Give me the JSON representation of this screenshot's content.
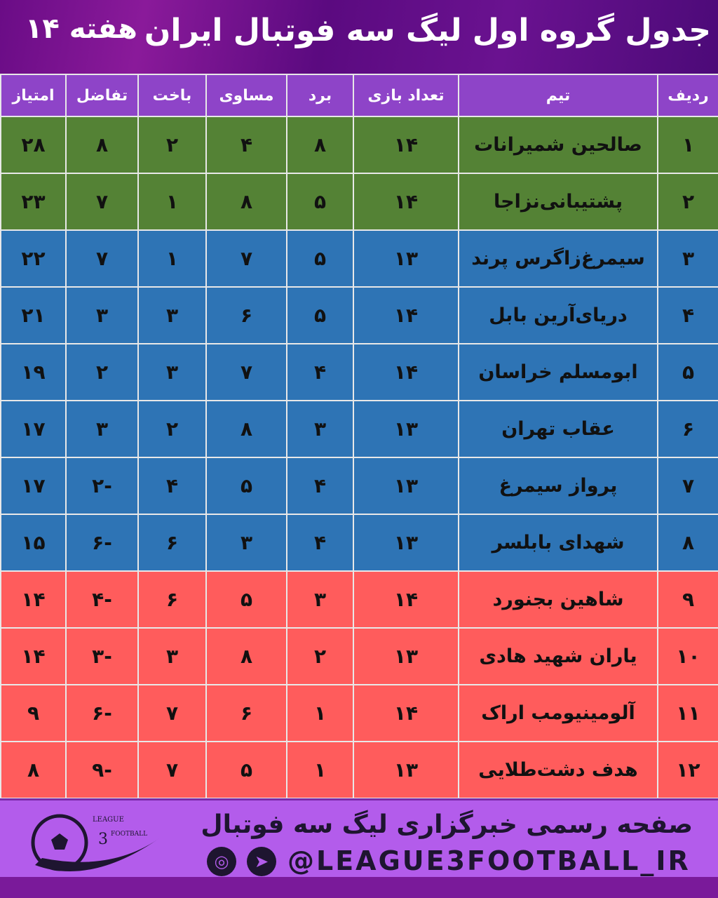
{
  "header": {
    "title": "جدول گروه اول لیگ سه فوتبال ایران",
    "week": "هفته ۱۴"
  },
  "columns": [
    "ردیف",
    "تیم",
    "تعداد بازی",
    "برد",
    "مساوی",
    "باخت",
    "تفاضل",
    "امتیاز"
  ],
  "zone_colors": {
    "green": "#548235",
    "blue": "#2e74b5",
    "red": "#ff5c5c"
  },
  "rows": [
    {
      "zone": "g",
      "cells": [
        "۱",
        "صالحین شمیرانات",
        "۱۴",
        "۸",
        "۴",
        "۲",
        "۸",
        "۲۸"
      ]
    },
    {
      "zone": "g",
      "cells": [
        "۲",
        "پشتیبانی‌نزاجا",
        "۱۴",
        "۵",
        "۸",
        "۱",
        "۷",
        "۲۳"
      ]
    },
    {
      "zone": "b",
      "cells": [
        "۳",
        "سیمرغ‌زاگرس پرند",
        "۱۳",
        "۵",
        "۷",
        "۱",
        "۷",
        "۲۲"
      ]
    },
    {
      "zone": "b",
      "cells": [
        "۴",
        "دریای‌آرین بابل",
        "۱۴",
        "۵",
        "۶",
        "۳",
        "۳",
        "۲۱"
      ]
    },
    {
      "zone": "b",
      "cells": [
        "۵",
        "ابومسلم خراسان",
        "۱۴",
        "۴",
        "۷",
        "۳",
        "۲",
        "۱۹"
      ]
    },
    {
      "zone": "b",
      "cells": [
        "۶",
        "عقاب تهران",
        "۱۳",
        "۳",
        "۸",
        "۲",
        "۳",
        "۱۷"
      ]
    },
    {
      "zone": "b",
      "cells": [
        "۷",
        "پرواز سیمرغ",
        "۱۳",
        "۴",
        "۵",
        "۴",
        "-۲",
        "۱۷"
      ]
    },
    {
      "zone": "b",
      "cells": [
        "۸",
        "شهدای بابلسر",
        "۱۳",
        "۴",
        "۳",
        "۶",
        "-۶",
        "۱۵"
      ]
    },
    {
      "zone": "r",
      "cells": [
        "۹",
        "شاهین بجنورد",
        "۱۴",
        "۳",
        "۵",
        "۶",
        "-۴",
        "۱۴"
      ]
    },
    {
      "zone": "r",
      "cells": [
        "۱۰",
        "یاران شهید هادی",
        "۱۳",
        "۲",
        "۸",
        "۳",
        "-۳",
        "۱۴"
      ]
    },
    {
      "zone": "r",
      "cells": [
        "۱۱",
        "آلومینیومب اراک",
        "۱۴",
        "۱",
        "۶",
        "۷",
        "-۶",
        "۹"
      ]
    },
    {
      "zone": "r",
      "cells": [
        "۱۲",
        "هدف دشت‌طلایی",
        "۱۳",
        "۱",
        "۵",
        "۷",
        "-۹",
        "۸"
      ]
    }
  ],
  "footer": {
    "tagline": "صفحه رسمی خبرگزاری لیگ سه فوتبال",
    "handle": "@LEAGUE3FOOTBALL_IR",
    "logo_text": [
      "LEAGUE",
      "3",
      "FOOTBALL"
    ],
    "icons": [
      "instagram-icon",
      "telegram-icon"
    ]
  }
}
